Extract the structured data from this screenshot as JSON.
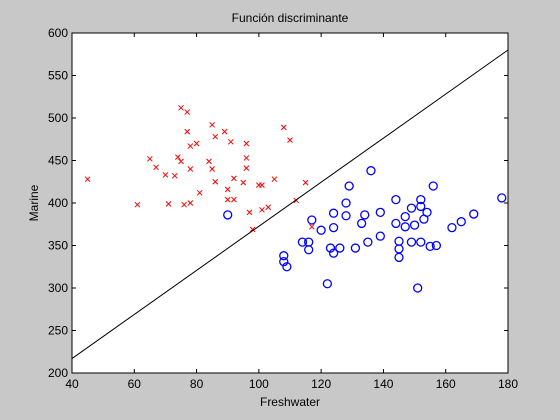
{
  "chart_data": {
    "type": "scatter",
    "title": "Función discriminante",
    "x_label": "Freshwater",
    "y_label": "Marine",
    "xlim": [
      40,
      180
    ],
    "ylim": [
      200,
      600
    ],
    "xticks": [
      40,
      60,
      80,
      100,
      120,
      140,
      160,
      180
    ],
    "yticks": [
      200,
      250,
      300,
      350,
      400,
      450,
      500,
      550,
      600
    ],
    "series": [
      {
        "marker": "x",
        "color": "#ff0000",
        "x": [
          45,
          61,
          65,
          67,
          70,
          71,
          73,
          74,
          75,
          75,
          76,
          77,
          77,
          78,
          78,
          78,
          80,
          81,
          84,
          85,
          85,
          86,
          86,
          89,
          90,
          90,
          91,
          92,
          92,
          95,
          96,
          96,
          96,
          97,
          98,
          100,
          101,
          101,
          103,
          105,
          108,
          110,
          115,
          112,
          117
        ],
        "values": [
          428,
          398,
          452,
          442,
          433,
          399,
          432,
          454,
          449,
          512,
          398,
          507,
          484,
          440,
          400,
          467,
          470,
          412,
          449,
          492,
          440,
          425,
          478,
          484,
          416,
          404,
          472,
          404,
          429,
          424,
          453,
          470,
          441,
          389,
          369,
          421,
          421,
          392,
          395,
          428,
          489,
          474,
          424,
          403,
          372
        ]
      },
      {
        "marker": "o",
        "color": "#0000ff",
        "x": [
          90,
          108,
          108,
          109,
          114,
          116,
          116,
          117,
          120,
          122,
          123,
          124,
          124,
          124,
          126,
          128,
          129,
          128,
          131,
          133,
          134,
          135,
          136,
          139,
          139,
          144,
          144,
          145,
          145,
          145,
          147,
          147,
          149,
          149,
          150,
          151,
          152,
          152,
          152,
          153,
          154,
          155,
          156,
          157,
          162,
          165,
          169,
          178
        ],
        "values": [
          386,
          338,
          331,
          325,
          354,
          354,
          345,
          380,
          368,
          305,
          347,
          371,
          388,
          341,
          347,
          400,
          420,
          385,
          347,
          376,
          386,
          354,
          438,
          389,
          361,
          404,
          376,
          346,
          355,
          336,
          384,
          372,
          394,
          354,
          374,
          300,
          354,
          396,
          404,
          381,
          389,
          349,
          420,
          350,
          371,
          378,
          387,
          406
        ]
      },
      {
        "marker": "line",
        "color": "#000000",
        "x": [
          40,
          180
        ],
        "values": [
          217,
          580
        ]
      }
    ]
  }
}
